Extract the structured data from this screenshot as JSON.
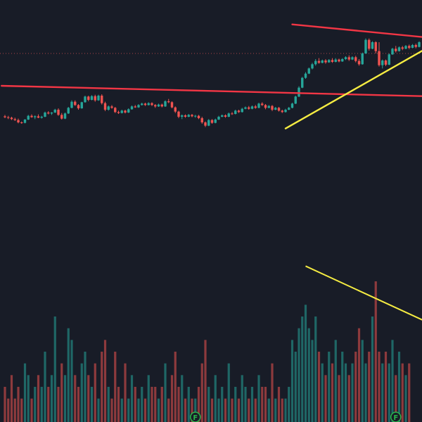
{
  "theme": {
    "background": "#181c27",
    "up_color": "#26a69a",
    "down_color": "#ef5350",
    "trendline_red": "#f23645",
    "trendline_yellow": "#f5ec42",
    "price_line": "#d05050",
    "earnings_badge": "#2ab34a"
  },
  "chart_data": {
    "type": "candlestick",
    "title": "",
    "xlabel": "",
    "ylabel": "",
    "grid": false,
    "price_axis_visible": false,
    "time_axis_visible": false,
    "candles": [
      {
        "o": 5.2,
        "h": 5.5,
        "l": 4.8,
        "c": 5.0
      },
      {
        "o": 5.0,
        "h": 5.3,
        "l": 4.6,
        "c": 4.9
      },
      {
        "o": 4.9,
        "h": 5.1,
        "l": 4.4,
        "c": 4.6
      },
      {
        "o": 4.6,
        "h": 4.9,
        "l": 4.2,
        "c": 4.4
      },
      {
        "o": 4.4,
        "h": 4.7,
        "l": 3.7,
        "c": 3.9
      },
      {
        "o": 3.9,
        "h": 4.1,
        "l": 3.6,
        "c": 3.8
      },
      {
        "o": 3.8,
        "h": 4.6,
        "l": 3.7,
        "c": 4.5
      },
      {
        "o": 4.5,
        "h": 5.5,
        "l": 4.4,
        "c": 5.3
      },
      {
        "o": 5.3,
        "h": 5.6,
        "l": 4.9,
        "c": 5.0
      },
      {
        "o": 5.0,
        "h": 5.4,
        "l": 4.6,
        "c": 5.2
      },
      {
        "o": 5.2,
        "h": 5.6,
        "l": 4.8,
        "c": 4.9
      },
      {
        "o": 4.9,
        "h": 5.3,
        "l": 4.7,
        "c": 5.1
      },
      {
        "o": 5.1,
        "h": 6.2,
        "l": 5.0,
        "c": 6.0
      },
      {
        "o": 6.0,
        "h": 6.3,
        "l": 5.6,
        "c": 5.8
      },
      {
        "o": 5.8,
        "h": 6.1,
        "l": 5.5,
        "c": 6.0
      },
      {
        "o": 6.0,
        "h": 6.8,
        "l": 5.9,
        "c": 6.6
      },
      {
        "o": 6.6,
        "h": 6.9,
        "l": 5.3,
        "c": 5.5
      },
      {
        "o": 5.5,
        "h": 5.9,
        "l": 4.5,
        "c": 4.7
      },
      {
        "o": 4.7,
        "h": 6.0,
        "l": 4.6,
        "c": 5.8
      },
      {
        "o": 5.8,
        "h": 7.2,
        "l": 5.7,
        "c": 7.0
      },
      {
        "o": 7.0,
        "h": 8.6,
        "l": 6.9,
        "c": 8.3
      },
      {
        "o": 8.3,
        "h": 8.6,
        "l": 7.4,
        "c": 7.6
      },
      {
        "o": 7.6,
        "h": 7.8,
        "l": 6.6,
        "c": 6.9
      },
      {
        "o": 6.9,
        "h": 8.3,
        "l": 6.8,
        "c": 8.2
      },
      {
        "o": 8.2,
        "h": 9.6,
        "l": 8.1,
        "c": 9.4
      },
      {
        "o": 9.4,
        "h": 9.6,
        "l": 8.4,
        "c": 8.7
      },
      {
        "o": 8.7,
        "h": 9.7,
        "l": 8.6,
        "c": 9.5
      },
      {
        "o": 9.5,
        "h": 9.8,
        "l": 8.3,
        "c": 8.6
      },
      {
        "o": 8.6,
        "h": 9.8,
        "l": 8.5,
        "c": 9.6
      },
      {
        "o": 9.6,
        "h": 9.9,
        "l": 7.7,
        "c": 8.0
      },
      {
        "o": 8.0,
        "h": 8.3,
        "l": 6.3,
        "c": 6.6
      },
      {
        "o": 6.6,
        "h": 7.5,
        "l": 6.4,
        "c": 7.3
      },
      {
        "o": 7.3,
        "h": 7.6,
        "l": 6.8,
        "c": 7.0
      },
      {
        "o": 7.0,
        "h": 7.2,
        "l": 5.9,
        "c": 6.1
      },
      {
        "o": 6.1,
        "h": 6.4,
        "l": 5.7,
        "c": 5.9
      },
      {
        "o": 5.9,
        "h": 6.6,
        "l": 5.8,
        "c": 6.4
      },
      {
        "o": 6.4,
        "h": 6.6,
        "l": 5.8,
        "c": 6.0
      },
      {
        "o": 6.0,
        "h": 6.9,
        "l": 5.9,
        "c": 6.7
      },
      {
        "o": 6.7,
        "h": 7.5,
        "l": 6.6,
        "c": 7.3
      },
      {
        "o": 7.3,
        "h": 7.6,
        "l": 7.0,
        "c": 7.1
      },
      {
        "o": 7.1,
        "h": 7.8,
        "l": 7.0,
        "c": 7.6
      },
      {
        "o": 7.6,
        "h": 8.1,
        "l": 7.5,
        "c": 7.9
      },
      {
        "o": 7.9,
        "h": 8.1,
        "l": 7.4,
        "c": 7.6
      },
      {
        "o": 7.6,
        "h": 8.2,
        "l": 7.5,
        "c": 8.0
      },
      {
        "o": 8.0,
        "h": 8.2,
        "l": 7.4,
        "c": 7.6
      },
      {
        "o": 7.6,
        "h": 7.8,
        "l": 7.0,
        "c": 7.3
      },
      {
        "o": 7.3,
        "h": 7.9,
        "l": 7.2,
        "c": 7.7
      },
      {
        "o": 7.7,
        "h": 7.9,
        "l": 7.1,
        "c": 7.3
      },
      {
        "o": 7.3,
        "h": 8.6,
        "l": 7.2,
        "c": 8.4
      },
      {
        "o": 8.4,
        "h": 8.9,
        "l": 8.0,
        "c": 8.2
      },
      {
        "o": 8.2,
        "h": 8.4,
        "l": 6.9,
        "c": 7.1
      },
      {
        "o": 7.1,
        "h": 7.3,
        "l": 5.9,
        "c": 6.2
      },
      {
        "o": 6.2,
        "h": 6.4,
        "l": 4.8,
        "c": 5.1
      },
      {
        "o": 5.1,
        "h": 5.6,
        "l": 4.6,
        "c": 5.4
      },
      {
        "o": 5.4,
        "h": 5.6,
        "l": 4.9,
        "c": 5.1
      },
      {
        "o": 5.1,
        "h": 5.7,
        "l": 5.0,
        "c": 5.5
      },
      {
        "o": 5.5,
        "h": 5.7,
        "l": 5.0,
        "c": 5.2
      },
      {
        "o": 5.2,
        "h": 5.5,
        "l": 4.9,
        "c": 5.3
      },
      {
        "o": 5.3,
        "h": 5.5,
        "l": 4.6,
        "c": 4.8
      },
      {
        "o": 4.8,
        "h": 5.1,
        "l": 3.6,
        "c": 3.9
      },
      {
        "o": 3.9,
        "h": 4.1,
        "l": 2.9,
        "c": 3.2
      },
      {
        "o": 3.2,
        "h": 4.6,
        "l": 3.1,
        "c": 4.4
      },
      {
        "o": 4.4,
        "h": 4.6,
        "l": 3.6,
        "c": 3.8
      },
      {
        "o": 3.8,
        "h": 4.7,
        "l": 3.7,
        "c": 4.5
      },
      {
        "o": 4.5,
        "h": 5.3,
        "l": 4.4,
        "c": 5.1
      },
      {
        "o": 5.1,
        "h": 5.6,
        "l": 5.0,
        "c": 5.4
      },
      {
        "o": 5.4,
        "h": 5.6,
        "l": 4.9,
        "c": 5.1
      },
      {
        "o": 5.1,
        "h": 6.0,
        "l": 5.0,
        "c": 5.8
      },
      {
        "o": 5.8,
        "h": 6.1,
        "l": 5.5,
        "c": 5.7
      },
      {
        "o": 5.7,
        "h": 6.6,
        "l": 5.6,
        "c": 6.4
      },
      {
        "o": 6.4,
        "h": 6.6,
        "l": 5.9,
        "c": 6.1
      },
      {
        "o": 6.1,
        "h": 7.0,
        "l": 6.0,
        "c": 6.8
      },
      {
        "o": 6.8,
        "h": 7.3,
        "l": 6.7,
        "c": 7.1
      },
      {
        "o": 7.1,
        "h": 7.4,
        "l": 6.6,
        "c": 6.8
      },
      {
        "o": 6.8,
        "h": 7.5,
        "l": 6.7,
        "c": 7.3
      },
      {
        "o": 7.3,
        "h": 7.6,
        "l": 6.8,
        "c": 7.0
      },
      {
        "o": 7.0,
        "h": 8.1,
        "l": 6.9,
        "c": 7.9
      },
      {
        "o": 7.9,
        "h": 8.2,
        "l": 7.4,
        "c": 7.6
      },
      {
        "o": 7.6,
        "h": 7.8,
        "l": 6.7,
        "c": 7.0
      },
      {
        "o": 7.0,
        "h": 7.6,
        "l": 6.9,
        "c": 7.4
      },
      {
        "o": 7.4,
        "h": 7.6,
        "l": 6.3,
        "c": 6.6
      },
      {
        "o": 6.6,
        "h": 7.2,
        "l": 6.5,
        "c": 7.0
      },
      {
        "o": 7.0,
        "h": 7.2,
        "l": 6.2,
        "c": 6.4
      },
      {
        "o": 6.4,
        "h": 6.6,
        "l": 5.9,
        "c": 6.1
      },
      {
        "o": 6.1,
        "h": 6.8,
        "l": 6.0,
        "c": 6.6
      },
      {
        "o": 6.6,
        "h": 7.2,
        "l": 6.5,
        "c": 7.0
      },
      {
        "o": 7.0,
        "h": 8.1,
        "l": 6.9,
        "c": 7.9
      },
      {
        "o": 7.9,
        "h": 9.6,
        "l": 7.8,
        "c": 9.4
      },
      {
        "o": 9.4,
        "h": 11.6,
        "l": 9.3,
        "c": 11.3
      },
      {
        "o": 11.3,
        "h": 13.6,
        "l": 11.2,
        "c": 13.4
      },
      {
        "o": 13.4,
        "h": 14.6,
        "l": 13.2,
        "c": 14.3
      },
      {
        "o": 14.3,
        "h": 15.6,
        "l": 14.2,
        "c": 15.4
      },
      {
        "o": 15.4,
        "h": 16.6,
        "l": 15.2,
        "c": 16.3
      },
      {
        "o": 16.3,
        "h": 17.4,
        "l": 16.0,
        "c": 17.0
      },
      {
        "o": 17.0,
        "h": 17.6,
        "l": 16.4,
        "c": 16.6
      },
      {
        "o": 16.6,
        "h": 17.3,
        "l": 16.5,
        "c": 17.1
      },
      {
        "o": 17.1,
        "h": 17.4,
        "l": 16.4,
        "c": 16.7
      },
      {
        "o": 16.7,
        "h": 17.4,
        "l": 16.6,
        "c": 17.2
      },
      {
        "o": 17.2,
        "h": 17.6,
        "l": 16.6,
        "c": 16.8
      },
      {
        "o": 16.8,
        "h": 17.6,
        "l": 16.7,
        "c": 17.3
      },
      {
        "o": 17.3,
        "h": 17.5,
        "l": 16.7,
        "c": 16.9
      },
      {
        "o": 16.9,
        "h": 17.6,
        "l": 16.8,
        "c": 17.4
      },
      {
        "o": 17.4,
        "h": 18.0,
        "l": 17.2,
        "c": 17.8
      },
      {
        "o": 17.8,
        "h": 18.2,
        "l": 17.0,
        "c": 17.3
      },
      {
        "o": 17.3,
        "h": 18.0,
        "l": 17.2,
        "c": 17.8
      },
      {
        "o": 17.8,
        "h": 18.1,
        "l": 16.7,
        "c": 17.0
      },
      {
        "o": 17.0,
        "h": 17.4,
        "l": 16.0,
        "c": 16.3
      },
      {
        "o": 16.3,
        "h": 18.8,
        "l": 16.2,
        "c": 18.6
      },
      {
        "o": 18.6,
        "h": 21.8,
        "l": 18.5,
        "c": 21.5
      },
      {
        "o": 21.5,
        "h": 21.8,
        "l": 19.2,
        "c": 19.6
      },
      {
        "o": 19.6,
        "h": 21.2,
        "l": 19.5,
        "c": 21.0
      },
      {
        "o": 21.0,
        "h": 21.2,
        "l": 18.6,
        "c": 19.1
      },
      {
        "o": 19.1,
        "h": 21.0,
        "l": 15.8,
        "c": 16.1
      },
      {
        "o": 16.1,
        "h": 17.3,
        "l": 15.4,
        "c": 17.1
      },
      {
        "o": 17.1,
        "h": 17.3,
        "l": 15.9,
        "c": 16.2
      },
      {
        "o": 16.2,
        "h": 18.6,
        "l": 16.1,
        "c": 18.4
      },
      {
        "o": 18.4,
        "h": 19.8,
        "l": 18.3,
        "c": 19.6
      },
      {
        "o": 19.6,
        "h": 20.2,
        "l": 18.8,
        "c": 19.1
      },
      {
        "o": 19.1,
        "h": 20.1,
        "l": 19.0,
        "c": 19.9
      },
      {
        "o": 19.9,
        "h": 20.2,
        "l": 19.3,
        "c": 19.6
      },
      {
        "o": 19.6,
        "h": 20.4,
        "l": 19.5,
        "c": 20.2
      },
      {
        "o": 20.2,
        "h": 20.5,
        "l": 19.5,
        "c": 19.8
      },
      {
        "o": 19.8,
        "h": 20.6,
        "l": 19.7,
        "c": 20.4
      },
      {
        "o": 20.4,
        "h": 20.7,
        "l": 19.7,
        "c": 20.0
      },
      {
        "o": 20.0,
        "h": 21.2,
        "l": 19.9,
        "c": 21.0
      }
    ],
    "volume": [
      3,
      2,
      4,
      2,
      3,
      2,
      5,
      4,
      2,
      3,
      4,
      3,
      6,
      3,
      4,
      9,
      3,
      5,
      4,
      8,
      7,
      4,
      3,
      5,
      6,
      4,
      3,
      5,
      2,
      6,
      7,
      3,
      2,
      6,
      3,
      2,
      5,
      2,
      4,
      3,
      2,
      3,
      2,
      4,
      3,
      3,
      2,
      3,
      5,
      2,
      4,
      6,
      3,
      4,
      2,
      3,
      2,
      2,
      3,
      5,
      7,
      3,
      2,
      4,
      2,
      3,
      2,
      5,
      2,
      3,
      2,
      4,
      3,
      2,
      3,
      2,
      4,
      3,
      3,
      2,
      5,
      2,
      3,
      2,
      2,
      3,
      7,
      6,
      8,
      9,
      10,
      8,
      7,
      9,
      6,
      5,
      4,
      6,
      5,
      7,
      4,
      6,
      5,
      4,
      5,
      6,
      8,
      7,
      5,
      6,
      9,
      12,
      6,
      5,
      6,
      5,
      7,
      4,
      6,
      5,
      4,
      5
    ],
    "volume_ylim": [
      0,
      36
    ],
    "ylim": [
      -60,
      30
    ],
    "price_line": {
      "value": 18.6,
      "style": "dotted"
    },
    "trendlines": [
      {
        "name": "",
        "color": "red",
        "from": {
          "i": -1,
          "v": 11.7
        },
        "to": {
          "i": 125,
          "v": 9.5
        }
      },
      {
        "name": "",
        "color": "red",
        "from": {
          "i": 86,
          "v": 24.8
        },
        "to": {
          "i": 125,
          "v": 22.1
        }
      },
      {
        "name": "",
        "color": "yellow",
        "from": {
          "i": 84,
          "v": 2.6
        },
        "to": {
          "i": 125,
          "v": 19.2
        }
      }
    ],
    "volume_trendlines": [
      {
        "name": "",
        "color": "yellow",
        "from": {
          "i": 90,
          "v": 13.3
        },
        "to": {
          "i": 125,
          "v": 8.7
        }
      }
    ],
    "events": [
      {
        "label": "F",
        "i": 57
      },
      {
        "label": "F",
        "i": 117
      }
    ]
  }
}
